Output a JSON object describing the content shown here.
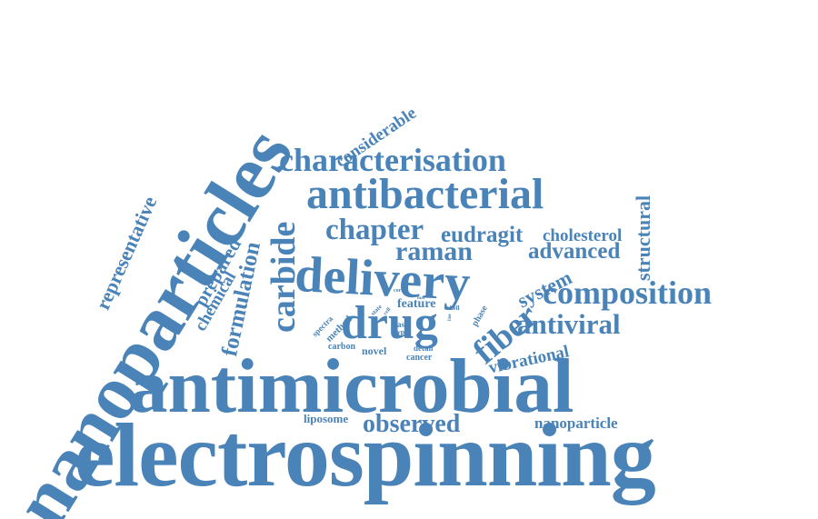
{
  "color": "#4a83b8",
  "words": [
    {
      "id": "electrospinning",
      "text": "electrospinning"
    },
    {
      "id": "nanoparticles",
      "text": "nanoparticles"
    },
    {
      "id": "antimicrobial",
      "text": "antimicrobial"
    },
    {
      "id": "delivery",
      "text": "delivery"
    },
    {
      "id": "drug",
      "text": "drug"
    },
    {
      "id": "antibacterial",
      "text": "antibacterial"
    },
    {
      "id": "characterisation",
      "text": "characterisation"
    },
    {
      "id": "composition",
      "text": "composition"
    },
    {
      "id": "carbide",
      "text": "carbide"
    },
    {
      "id": "fiber",
      "text": "fiber"
    },
    {
      "id": "antiviral",
      "text": "antiviral"
    },
    {
      "id": "chapter",
      "text": "chapter"
    },
    {
      "id": "raman",
      "text": "raman"
    },
    {
      "id": "eudragit",
      "text": "eudragit"
    },
    {
      "id": "observed",
      "text": "observed"
    },
    {
      "id": "advanced",
      "text": "advanced"
    },
    {
      "id": "formulation",
      "text": "formulation"
    },
    {
      "id": "representative",
      "text": "representative"
    },
    {
      "id": "considerable",
      "text": "considerable"
    },
    {
      "id": "structural",
      "text": "structural"
    },
    {
      "id": "system",
      "text": "system"
    },
    {
      "id": "vibrational",
      "text": "vibrational"
    },
    {
      "id": "cholesterol",
      "text": "cholesterol"
    },
    {
      "id": "prepared",
      "text": "prepared"
    },
    {
      "id": "chemical",
      "text": "chemical"
    },
    {
      "id": "nanoparticle",
      "text": "nanoparticle"
    },
    {
      "id": "liposome",
      "text": "liposome"
    },
    {
      "id": "feature",
      "text": "feature"
    },
    {
      "id": "novel",
      "text": "novel"
    },
    {
      "id": "carbon",
      "text": "carbon"
    },
    {
      "id": "cancer",
      "text": "cancer"
    },
    {
      "id": "method",
      "text": "method"
    },
    {
      "id": "spectra",
      "text": "spectra"
    },
    {
      "id": "phase",
      "text": "phase"
    },
    {
      "id": "detail",
      "text": "detail"
    },
    {
      "id": "type",
      "text": "type"
    },
    {
      "id": "fast",
      "text": "fast"
    },
    {
      "id": "shell",
      "text": "shell"
    },
    {
      "id": "state",
      "text": "state"
    },
    {
      "id": "core",
      "text": "core"
    },
    {
      "id": "cell",
      "text": "cell"
    },
    {
      "id": "mat",
      "text": "mat"
    },
    {
      "id": "line",
      "text": "line"
    }
  ]
}
